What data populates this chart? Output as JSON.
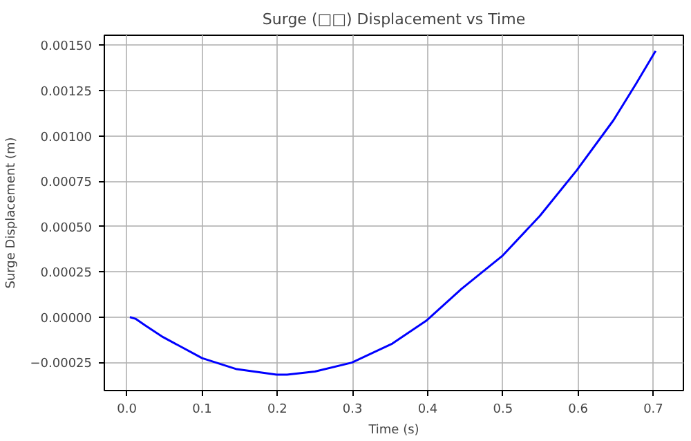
{
  "chart_data": {
    "type": "line",
    "title": "Surge (□□) Displacement vs Time",
    "xlabel": "Time (s)",
    "ylabel": "Surge Displacement (m)",
    "x": [
      0.004,
      0.012,
      0.024,
      0.048,
      0.1,
      0.146,
      0.199,
      0.213,
      0.25,
      0.299,
      0.353,
      0.398,
      0.445,
      0.499,
      0.549,
      0.598,
      0.647,
      0.677,
      0.703
    ],
    "series": [
      {
        "color": "#0000ff",
        "values": [
          0,
          -1e-05,
          -4.5e-05,
          -0.00011,
          -0.000226,
          -0.000287,
          -0.000317,
          -0.000317,
          -0.0003,
          -0.000251,
          -0.000146,
          -2e-05,
          0.000156,
          0.000337,
          0.000558,
          0.000809,
          0.001086,
          0.001287,
          0.001468
        ]
      }
    ],
    "xlim": [
      -0.03,
      0.74
    ],
    "ylim": [
      -0.000405,
      0.001555
    ],
    "xticks": [
      {
        "value": 0,
        "label": "0.0"
      },
      {
        "value": 0.1,
        "label": "0.1"
      },
      {
        "value": 0.2,
        "label": "0.2"
      },
      {
        "value": 0.3,
        "label": "0.3"
      },
      {
        "value": 0.4,
        "label": "0.4"
      },
      {
        "value": 0.5,
        "label": "0.5"
      },
      {
        "value": 0.6,
        "label": "0.6"
      },
      {
        "value": 0.7,
        "label": "0.7"
      }
    ],
    "yticks": [
      {
        "value": -0.00025,
        "label": "−0.00025"
      },
      {
        "value": 0,
        "label": "0.00000"
      },
      {
        "value": 0.00025,
        "label": "0.00025"
      },
      {
        "value": 0.0005,
        "label": "0.00050"
      },
      {
        "value": 0.00075,
        "label": "0.00075"
      },
      {
        "value": 0.001,
        "label": "0.00100"
      },
      {
        "value": 0.00125,
        "label": "0.00125"
      },
      {
        "value": 0.0015,
        "label": "0.00150"
      }
    ],
    "grid": true
  }
}
